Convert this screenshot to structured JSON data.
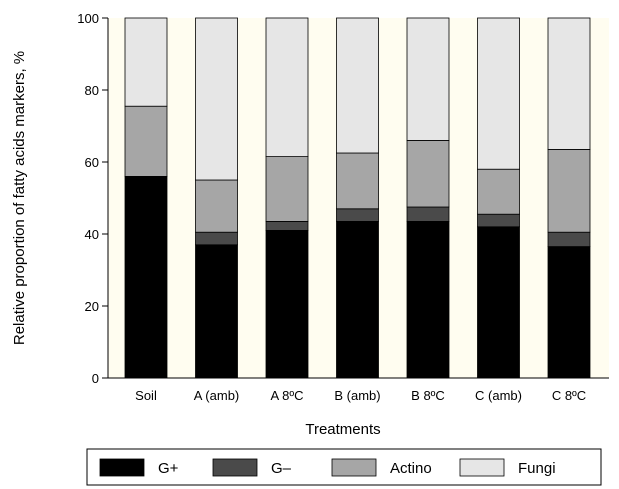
{
  "chart_data": {
    "type": "bar",
    "stacked": true,
    "xlabel": "Treatments",
    "ylabel": "Relative proportion of fatty acids markers, %",
    "ylim": [
      0,
      100
    ],
    "yticks": [
      0,
      20,
      40,
      60,
      80,
      100
    ],
    "categories": [
      "Soil",
      "A (amb)",
      "A 8ºC",
      "B (amb)",
      "B 8ºC",
      "C (amb)",
      "C 8ºC"
    ],
    "series": [
      {
        "name": "G+",
        "color": "#000000",
        "values": [
          56,
          37,
          41,
          43.5,
          43.5,
          42,
          36.5
        ]
      },
      {
        "name": "G–",
        "color": "#4a4a4a",
        "values": [
          0,
          3.5,
          2.5,
          3.5,
          4,
          3.5,
          4
        ]
      },
      {
        "name": "Actino",
        "color": "#a6a6a6",
        "values": [
          19.5,
          14.5,
          18,
          15.5,
          18.5,
          12.5,
          23
        ]
      },
      {
        "name": "Fungi",
        "color": "#e6e6e6",
        "values": [
          24.5,
          45,
          38.5,
          37.5,
          34,
          42,
          36.5
        ]
      }
    ],
    "grid": false,
    "legend": "bottom",
    "plot_background": "#fffdf0"
  }
}
